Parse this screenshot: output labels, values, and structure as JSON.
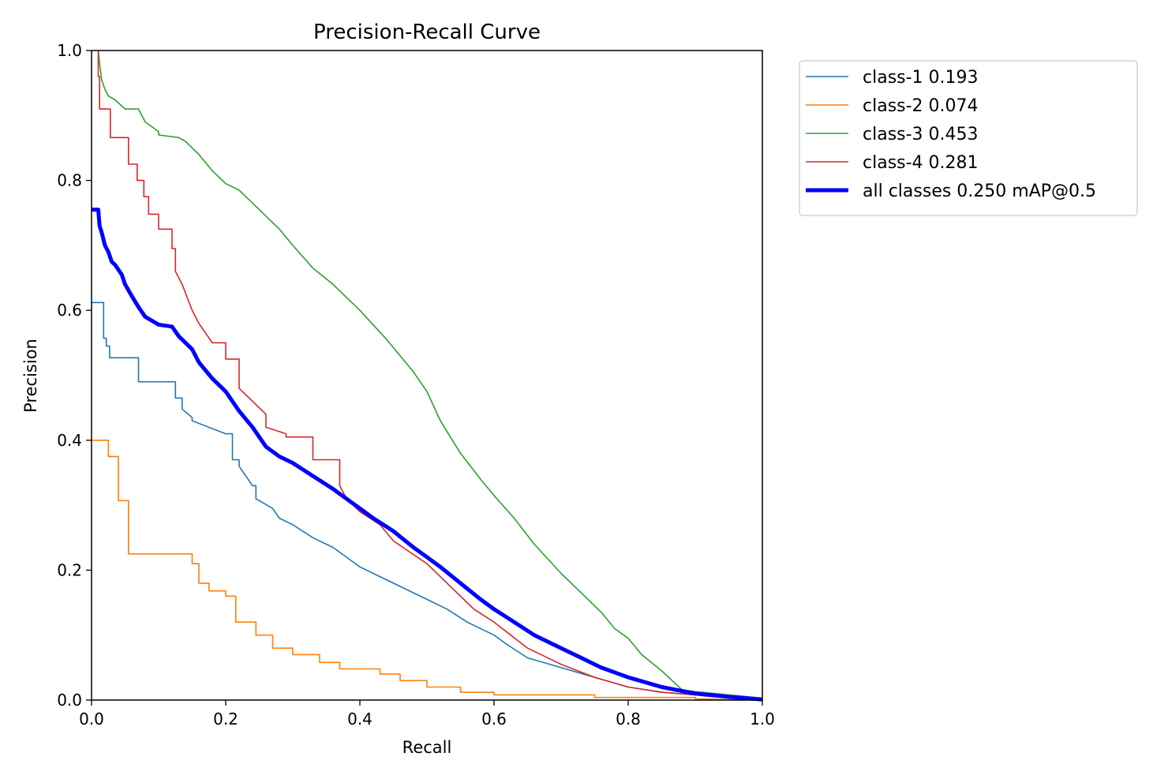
{
  "chart_data": {
    "type": "line",
    "title": "Precision-Recall Curve",
    "xlabel": "Recall",
    "ylabel": "Precision",
    "xlim": [
      0.0,
      1.0
    ],
    "ylim": [
      0.0,
      1.0
    ],
    "xticks": [
      "0.0",
      "0.2",
      "0.4",
      "0.6",
      "0.8",
      "1.0"
    ],
    "yticks": [
      "0.0",
      "0.2",
      "0.4",
      "0.6",
      "0.8",
      "1.0"
    ],
    "grid": false,
    "legend_position": "outside-top-right",
    "series": [
      {
        "name": "class-1 0.193",
        "color": "#1f77b4",
        "step": true,
        "x": [
          0.0,
          0.018,
          0.018,
          0.022,
          0.022,
          0.027,
          0.027,
          0.07,
          0.07,
          0.125,
          0.125,
          0.135,
          0.135,
          0.15,
          0.15,
          0.2,
          0.21,
          0.21,
          0.22,
          0.22,
          0.24,
          0.245,
          0.245,
          0.27,
          0.28,
          0.3,
          0.33,
          0.36,
          0.38,
          0.4,
          0.43,
          0.46,
          0.5,
          0.53,
          0.56,
          0.6,
          0.62,
          0.65,
          0.7,
          0.75,
          0.8,
          0.85,
          0.9,
          0.95,
          1.0
        ],
        "y": [
          0.612,
          0.612,
          0.557,
          0.557,
          0.545,
          0.545,
          0.527,
          0.527,
          0.49,
          0.49,
          0.465,
          0.465,
          0.448,
          0.435,
          0.43,
          0.41,
          0.41,
          0.37,
          0.37,
          0.36,
          0.33,
          0.33,
          0.31,
          0.295,
          0.28,
          0.27,
          0.25,
          0.235,
          0.22,
          0.205,
          0.19,
          0.175,
          0.155,
          0.14,
          0.12,
          0.1,
          0.085,
          0.065,
          0.05,
          0.035,
          0.02,
          0.012,
          0.008,
          0.004,
          0.0
        ]
      },
      {
        "name": "class-2 0.074",
        "color": "#ff7f0e",
        "step": true,
        "x": [
          0.0,
          0.025,
          0.025,
          0.04,
          0.04,
          0.055,
          0.055,
          0.15,
          0.15,
          0.16,
          0.16,
          0.175,
          0.175,
          0.2,
          0.2,
          0.215,
          0.215,
          0.245,
          0.245,
          0.27,
          0.27,
          0.3,
          0.3,
          0.34,
          0.34,
          0.37,
          0.37,
          0.43,
          0.43,
          0.46,
          0.46,
          0.5,
          0.5,
          0.55,
          0.55,
          0.6,
          0.6,
          0.75,
          0.75,
          0.9,
          0.9,
          1.0
        ],
        "y": [
          0.4,
          0.4,
          0.375,
          0.375,
          0.307,
          0.307,
          0.225,
          0.225,
          0.21,
          0.21,
          0.18,
          0.18,
          0.168,
          0.168,
          0.16,
          0.16,
          0.12,
          0.12,
          0.1,
          0.1,
          0.08,
          0.08,
          0.07,
          0.07,
          0.058,
          0.058,
          0.048,
          0.048,
          0.04,
          0.04,
          0.03,
          0.03,
          0.02,
          0.02,
          0.012,
          0.012,
          0.008,
          0.008,
          0.004,
          0.004,
          0.002,
          0.0
        ]
      },
      {
        "name": "class-3 0.453",
        "color": "#2ca02c",
        "step": false,
        "x": [
          0.01,
          0.012,
          0.015,
          0.02,
          0.025,
          0.035,
          0.05,
          0.07,
          0.08,
          0.1,
          0.1,
          0.13,
          0.14,
          0.16,
          0.18,
          0.2,
          0.22,
          0.25,
          0.28,
          0.3,
          0.33,
          0.36,
          0.4,
          0.44,
          0.46,
          0.48,
          0.5,
          0.52,
          0.55,
          0.58,
          0.6,
          0.63,
          0.66,
          0.7,
          0.73,
          0.76,
          0.78,
          0.8,
          0.82,
          0.85,
          0.88,
          0.9,
          0.95,
          1.0
        ],
        "y": [
          1.0,
          0.98,
          0.955,
          0.94,
          0.93,
          0.924,
          0.91,
          0.91,
          0.89,
          0.875,
          0.87,
          0.866,
          0.86,
          0.84,
          0.815,
          0.795,
          0.785,
          0.755,
          0.725,
          0.7,
          0.665,
          0.64,
          0.6,
          0.555,
          0.53,
          0.505,
          0.475,
          0.43,
          0.38,
          0.34,
          0.315,
          0.28,
          0.24,
          0.195,
          0.165,
          0.135,
          0.11,
          0.095,
          0.07,
          0.045,
          0.016,
          0.013,
          0.008,
          0.003
        ]
      },
      {
        "name": "class-4 0.281",
        "color": "#d62728",
        "step": true,
        "x": [
          0.01,
          0.01,
          0.012,
          0.012,
          0.028,
          0.028,
          0.055,
          0.055,
          0.068,
          0.068,
          0.078,
          0.078,
          0.085,
          0.085,
          0.1,
          0.1,
          0.12,
          0.12,
          0.125,
          0.125,
          0.135,
          0.15,
          0.16,
          0.18,
          0.2,
          0.2,
          0.22,
          0.22,
          0.24,
          0.26,
          0.26,
          0.29,
          0.29,
          0.33,
          0.33,
          0.37,
          0.37,
          0.38,
          0.4,
          0.43,
          0.45,
          0.5,
          0.53,
          0.57,
          0.6,
          0.65,
          0.7,
          0.75,
          0.8,
          0.85,
          0.9,
          0.95,
          1.0
        ],
        "y": [
          1.0,
          0.96,
          0.96,
          0.91,
          0.91,
          0.866,
          0.866,
          0.825,
          0.825,
          0.8,
          0.8,
          0.775,
          0.775,
          0.748,
          0.748,
          0.725,
          0.725,
          0.695,
          0.695,
          0.66,
          0.64,
          0.6,
          0.58,
          0.55,
          0.55,
          0.525,
          0.525,
          0.48,
          0.46,
          0.44,
          0.42,
          0.41,
          0.405,
          0.405,
          0.37,
          0.37,
          0.33,
          0.31,
          0.29,
          0.27,
          0.245,
          0.21,
          0.18,
          0.14,
          0.12,
          0.08,
          0.055,
          0.035,
          0.02,
          0.012,
          0.008,
          0.004,
          0.0
        ]
      },
      {
        "name": "all classes 0.250 mAP@0.5",
        "color": "#0000ff",
        "step": false,
        "thick": true,
        "x": [
          0.0,
          0.01,
          0.012,
          0.015,
          0.02,
          0.025,
          0.03,
          0.035,
          0.045,
          0.05,
          0.06,
          0.07,
          0.08,
          0.1,
          0.12,
          0.13,
          0.15,
          0.16,
          0.18,
          0.2,
          0.22,
          0.24,
          0.26,
          0.28,
          0.3,
          0.33,
          0.36,
          0.38,
          0.4,
          0.42,
          0.45,
          0.48,
          0.5,
          0.52,
          0.55,
          0.58,
          0.6,
          0.63,
          0.66,
          0.7,
          0.73,
          0.76,
          0.8,
          0.85,
          0.9,
          0.95,
          1.0
        ],
        "y": [
          0.755,
          0.755,
          0.73,
          0.72,
          0.7,
          0.69,
          0.675,
          0.67,
          0.655,
          0.64,
          0.622,
          0.605,
          0.59,
          0.578,
          0.575,
          0.56,
          0.54,
          0.52,
          0.495,
          0.475,
          0.445,
          0.42,
          0.39,
          0.375,
          0.365,
          0.345,
          0.325,
          0.31,
          0.295,
          0.28,
          0.26,
          0.235,
          0.22,
          0.205,
          0.18,
          0.155,
          0.14,
          0.12,
          0.1,
          0.08,
          0.065,
          0.05,
          0.035,
          0.02,
          0.01,
          0.005,
          0.001
        ]
      }
    ]
  }
}
